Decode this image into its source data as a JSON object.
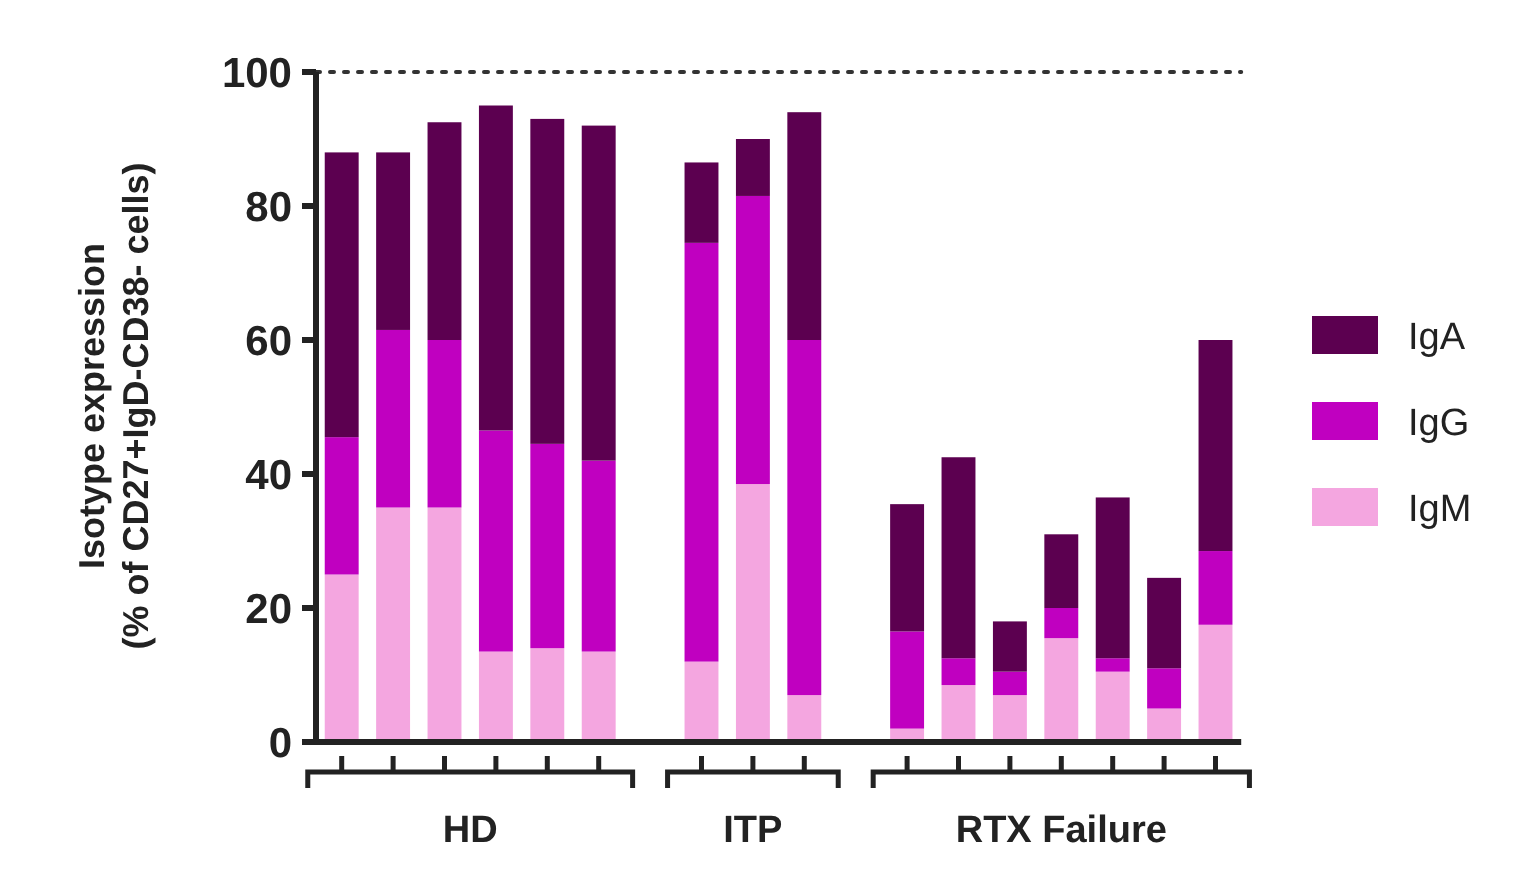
{
  "chart_data": {
    "type": "bar",
    "stacked": true,
    "ylabel": "Isotype expression\n(% of CD27+IgD-CD38- cells)",
    "categories": [
      null,
      null,
      null,
      null,
      null,
      null,
      null,
      null,
      null,
      null,
      null,
      null,
      null,
      null,
      null,
      null,
      null,
      null
    ],
    "series": [
      {
        "name": "IgM",
        "color": "#f4a6e0",
        "values": [
          25,
          35,
          35,
          13.5,
          14,
          13.5,
          null,
          12,
          38.5,
          7,
          null,
          2,
          8.5,
          7,
          15.5,
          10.5,
          5,
          17.5
        ]
      },
      {
        "name": "IgG",
        "color": "#c000c0",
        "values": [
          20.5,
          26.5,
          25,
          33,
          30.5,
          28.5,
          null,
          62.5,
          43,
          53,
          null,
          14.5,
          4,
          3.5,
          4.5,
          2,
          6,
          11
        ]
      },
      {
        "name": "IgA",
        "color": "#5c0050",
        "values": [
          42.5,
          26.5,
          32.5,
          48.5,
          48.5,
          50,
          null,
          12,
          8.5,
          34,
          null,
          19,
          30,
          7.5,
          11,
          24,
          13.5,
          31.5
        ]
      }
    ],
    "ylim": [
      0,
      100
    ],
    "yticks": [
      0,
      20,
      40,
      60,
      80,
      100
    ],
    "ref_lines": [
      {
        "axis": "y",
        "value": 100,
        "line_style": "dotted",
        "color": "#333333"
      }
    ],
    "annotations": [
      "HD",
      "ITP",
      "RTX Failure"
    ],
    "legend": "right",
    "grid": false
  }
}
